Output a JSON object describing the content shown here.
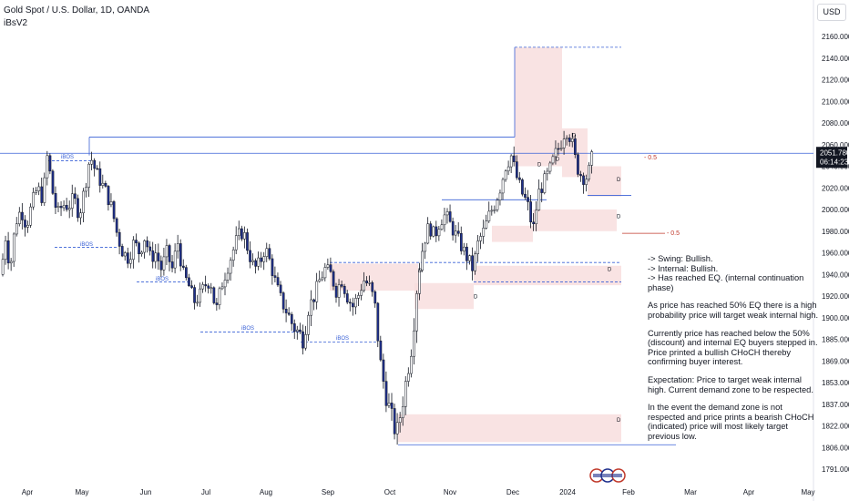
{
  "header": {
    "symbol": "Gold Spot / U.S. Dollar, 1D, OANDA",
    "indicator": "iBsV2"
  },
  "currency_button": "USD",
  "colors": {
    "bull_body": "#ffffff",
    "bear_body": "#1e2f8c",
    "wick": "#131722",
    "bos_line": "#3960d6",
    "zone_fill": "#f7dcdc",
    "eq_label": "#c0392b"
  },
  "chart_data": {
    "type": "candlestick",
    "ylim": [
      1791,
      2175
    ],
    "y_ticks": [
      {
        "v": 2160,
        "label": "2160.000"
      },
      {
        "v": 2140,
        "label": "2140.000"
      },
      {
        "v": 2120,
        "label": "2120.000"
      },
      {
        "v": 2100,
        "label": "2100.000"
      },
      {
        "v": 2080,
        "label": "2080.000"
      },
      {
        "v": 2060,
        "label": "2060.000"
      },
      {
        "v": 2040,
        "label": "2040.000"
      },
      {
        "v": 2020,
        "label": "2020.000"
      },
      {
        "v": 2000,
        "label": "2000.000"
      },
      {
        "v": 1980,
        "label": "1980.000"
      },
      {
        "v": 1960,
        "label": "1960.000"
      },
      {
        "v": 1940,
        "label": "1940.000"
      },
      {
        "v": 1920,
        "label": "1920.000"
      },
      {
        "v": 1900,
        "label": "1900.000"
      },
      {
        "v": 1885,
        "label": "1885.000"
      },
      {
        "v": 1869,
        "label": "1869.000"
      },
      {
        "v": 1853,
        "label": "1853.000"
      },
      {
        "v": 1837,
        "label": "1837.000"
      },
      {
        "v": 1822,
        "label": "1822.000"
      },
      {
        "v": 1806,
        "label": "1806.000"
      },
      {
        "v": 1791,
        "label": "1791.000"
      }
    ],
    "x_ticks": [
      "Apr",
      "May",
      "Jun",
      "Jul",
      "Aug",
      "Sep",
      "Oct",
      "Nov",
      "Dec",
      "2024",
      "Feb",
      "Mar",
      "Apr",
      "May"
    ],
    "last_price": "2051.780",
    "countdown": "06:14:23",
    "path": [
      [
        0,
        1940
      ],
      [
        5,
        1975
      ],
      [
        10,
        1945
      ],
      [
        16,
        1988
      ],
      [
        22,
        2000
      ],
      [
        28,
        1985
      ],
      [
        34,
        2005
      ],
      [
        40,
        2020
      ],
      [
        46,
        2010
      ],
      [
        51,
        2050
      ],
      [
        57,
        2015
      ],
      [
        62,
        1995
      ],
      [
        68,
        2005
      ],
      [
        74,
        2003
      ],
      [
        80,
        2010
      ],
      [
        86,
        1995
      ],
      [
        92,
        2020
      ],
      [
        98,
        2050
      ],
      [
        104,
        2035
      ],
      [
        110,
        2025
      ],
      [
        116,
        2015
      ],
      [
        122,
        2000
      ],
      [
        128,
        1975
      ],
      [
        134,
        1960
      ],
      [
        140,
        1955
      ],
      [
        146,
        1970
      ],
      [
        152,
        1960
      ],
      [
        158,
        1975
      ],
      [
        164,
        1955
      ],
      [
        170,
        1960
      ],
      [
        176,
        1945
      ],
      [
        182,
        1960
      ],
      [
        188,
        1945
      ],
      [
        194,
        1970
      ],
      [
        200,
        1940
      ],
      [
        206,
        1930
      ],
      [
        212,
        1915
      ],
      [
        218,
        1920
      ],
      [
        224,
        1930
      ],
      [
        230,
        1935
      ],
      [
        236,
        1905
      ],
      [
        242,
        1930
      ],
      [
        248,
        1945
      ],
      [
        254,
        1960
      ],
      [
        260,
        1975
      ],
      [
        266,
        1980
      ],
      [
        272,
        1960
      ],
      [
        278,
        1945
      ],
      [
        284,
        1950
      ],
      [
        290,
        1965
      ],
      [
        296,
        1950
      ],
      [
        302,
        1930
      ],
      [
        308,
        1915
      ],
      [
        314,
        1905
      ],
      [
        320,
        1895
      ],
      [
        326,
        1890
      ],
      [
        332,
        1885
      ],
      [
        338,
        1910
      ],
      [
        344,
        1920
      ],
      [
        350,
        1935
      ],
      [
        356,
        1945
      ],
      [
        362,
        1940
      ],
      [
        368,
        1925
      ],
      [
        374,
        1935
      ],
      [
        380,
        1920
      ],
      [
        386,
        1910
      ],
      [
        392,
        1920
      ],
      [
        398,
        1935
      ],
      [
        404,
        1930
      ],
      [
        410,
        1915
      ],
      [
        416,
        1870
      ],
      [
        422,
        1845
      ],
      [
        428,
        1830
      ],
      [
        434,
        1815
      ],
      [
        440,
        1835
      ],
      [
        446,
        1860
      ],
      [
        452,
        1885
      ],
      [
        458,
        1940
      ],
      [
        464,
        1970
      ],
      [
        470,
        1985
      ],
      [
        476,
        1975
      ],
      [
        482,
        1990
      ],
      [
        488,
        1995
      ],
      [
        494,
        1985
      ],
      [
        500,
        1975
      ],
      [
        506,
        1965
      ],
      [
        512,
        1955
      ],
      [
        518,
        1945
      ],
      [
        524,
        1970
      ],
      [
        530,
        1980
      ],
      [
        536,
        1995
      ],
      [
        542,
        2005
      ],
      [
        548,
        2020
      ],
      [
        554,
        2040
      ],
      [
        560,
        2050
      ],
      [
        566,
        2030
      ],
      [
        572,
        2015
      ],
      [
        578,
        2005
      ],
      [
        584,
        1980
      ],
      [
        590,
        2015
      ],
      [
        596,
        2025
      ],
      [
        602,
        2035
      ],
      [
        608,
        2050
      ],
      [
        614,
        2060
      ],
      [
        620,
        2075
      ],
      [
        626,
        2065
      ],
      [
        632,
        2040
      ],
      [
        638,
        2030
      ],
      [
        644,
        2030
      ],
      [
        650,
        2052
      ]
    ],
    "annotations": {
      "bos_labels": [
        "iBOS",
        "iBOS",
        "iBOS",
        "iBOS",
        "iBOS"
      ],
      "zone_label": "D",
      "eq_label": "- 0.5"
    }
  },
  "notes": [
    "-> Swing: Bullish.",
    "-> Internal: Bullish.",
    "-> Has reached EQ. (internal continuation phase)",
    "",
    "As price has reached 50% EQ there is a high probability price will target weak internal high.",
    "",
    "Currently price has reached below the 50% (discount) and internal EQ buyers stepped in. Price printed a bullish CHoCH thereby confirming buyer interest.",
    "",
    "Expectation: Price to target weak internal high. Current demand zone to be respected.",
    "",
    "In the event the demand zone is not respected and price prints a bearish CHoCH (indicated) price will most likely target previous low."
  ]
}
